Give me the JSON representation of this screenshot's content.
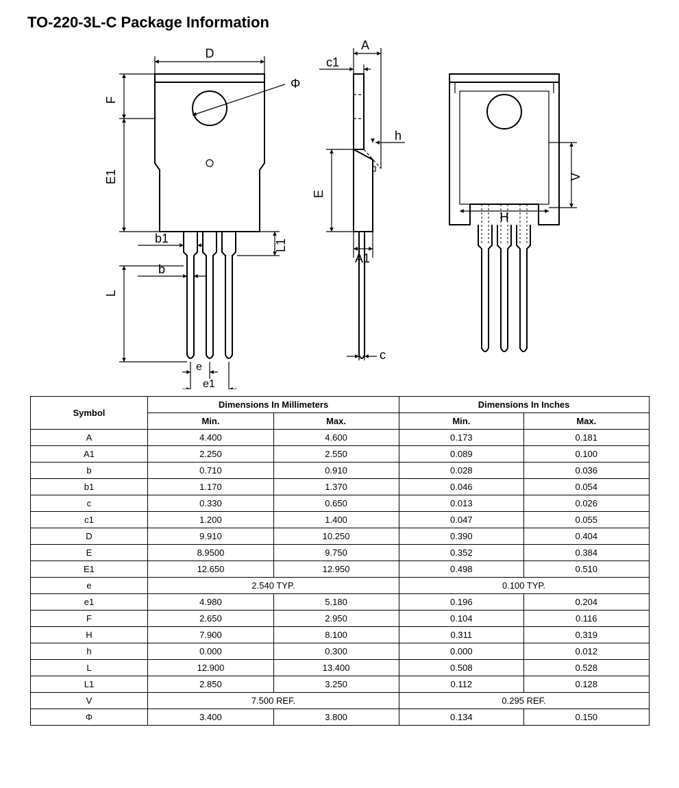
{
  "title": "TO-220-3L-C Package Information",
  "diagram": {
    "stroke": "#000000",
    "stroke_width": 2,
    "stroke_width_thin": 1.2,
    "arrow_size": 5,
    "label_font_size": 18,
    "labels": {
      "D": "D",
      "F": "F",
      "E1": "E1",
      "Phi": "Φ",
      "b1": "b1",
      "b": "b",
      "L": "L",
      "L1": "L1",
      "e": "e",
      "e1": "e1",
      "c1": "c1",
      "A": "A",
      "h": "h",
      "E": "E",
      "A1": "A1",
      "c": "c",
      "H": "H",
      "V": "V"
    }
  },
  "table": {
    "headers": {
      "symbol": "Symbol",
      "dims_mm": "Dimensions In Millimeters",
      "dims_in": "Dimensions In Inches",
      "min": "Min.",
      "max": "Max."
    },
    "rows": [
      {
        "sym": "A",
        "mm_min": "4.400",
        "mm_max": "4.600",
        "in_min": "0.173",
        "in_max": "0.181"
      },
      {
        "sym": "A1",
        "mm_min": "2.250",
        "mm_max": "2.550",
        "in_min": "0.089",
        "in_max": "0.100"
      },
      {
        "sym": "b",
        "mm_min": "0.710",
        "mm_max": "0.910",
        "in_min": "0.028",
        "in_max": "0.036"
      },
      {
        "sym": "b1",
        "mm_min": "1.170",
        "mm_max": "1.370",
        "in_min": "0.046",
        "in_max": "0.054"
      },
      {
        "sym": "c",
        "mm_min": "0.330",
        "mm_max": "0.650",
        "in_min": "0.013",
        "in_max": "0.026"
      },
      {
        "sym": "c1",
        "mm_min": "1.200",
        "mm_max": "1.400",
        "in_min": "0.047",
        "in_max": "0.055"
      },
      {
        "sym": "D",
        "mm_min": "9.910",
        "mm_max": "10.250",
        "in_min": "0.390",
        "in_max": "0.404"
      },
      {
        "sym": "E",
        "mm_min": "8.9500",
        "mm_max": "9.750",
        "in_min": "0.352",
        "in_max": "0.384"
      },
      {
        "sym": "E1",
        "mm_min": "12.650",
        "mm_max": "12.950",
        "in_min": "0.498",
        "in_max": "0.510"
      },
      {
        "sym": "e",
        "mm_span": "2.540 TYP.",
        "in_span": "0.100 TYP."
      },
      {
        "sym": "e1",
        "mm_min": "4.980",
        "mm_max": "5.180",
        "in_min": "0.196",
        "in_max": "0.204"
      },
      {
        "sym": "F",
        "mm_min": "2.650",
        "mm_max": "2.950",
        "in_min": "0.104",
        "in_max": "0.116"
      },
      {
        "sym": "H",
        "mm_min": "7.900",
        "mm_max": "8.100",
        "in_min": "0.311",
        "in_max": "0.319"
      },
      {
        "sym": "h",
        "mm_min": "0.000",
        "mm_max": "0.300",
        "in_min": "0.000",
        "in_max": "0.012"
      },
      {
        "sym": "L",
        "mm_min": "12.900",
        "mm_max": "13.400",
        "in_min": "0.508",
        "in_max": "0.528"
      },
      {
        "sym": "L1",
        "mm_min": "2.850",
        "mm_max": "3.250",
        "in_min": "0.112",
        "in_max": "0.128"
      },
      {
        "sym": "V",
        "mm_span": "7.500 REF.",
        "in_span": "0.295 REF."
      },
      {
        "sym": "Φ",
        "mm_min": "3.400",
        "mm_max": "3.800",
        "in_min": "0.134",
        "in_max": "0.150"
      }
    ]
  }
}
